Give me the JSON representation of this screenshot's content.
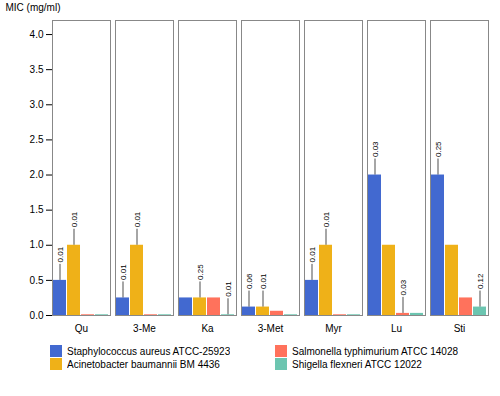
{
  "chart_data": {
    "type": "bar",
    "categories": [
      "Qu",
      "3-Me",
      "Ka",
      "3-Met",
      "Myr",
      "Lu",
      "Sti"
    ],
    "series": [
      {
        "name": "Staphylococcus aureus ATCC-25923",
        "values": [
          0.5,
          0.25,
          0.25,
          0.12,
          0.5,
          2.0,
          2.0
        ],
        "annotations": [
          "0.01",
          "0.01",
          null,
          "0.06",
          "0.01",
          "0.03",
          "0.25"
        ]
      },
      {
        "name": "Acinetobacter baumannii BM 4436",
        "values": [
          1.0,
          1.0,
          0.25,
          0.12,
          1.0,
          1.0,
          1.0
        ],
        "annotations": [
          "0.01",
          "0.01",
          "0.25",
          "0.01",
          "0.01",
          null,
          null
        ]
      },
      {
        "name": "Salmonella typhimurium ATCC 14028",
        "values": [
          0.01,
          0.01,
          0.25,
          0.06,
          0.01,
          0.03,
          0.25
        ],
        "annotations": [
          null,
          null,
          null,
          null,
          null,
          "0.03",
          null
        ]
      },
      {
        "name": "Shigella flexneri ATCC 12022",
        "values": [
          0.01,
          0.01,
          0.01,
          0.01,
          0.01,
          0.03,
          0.12
        ],
        "annotations": [
          null,
          null,
          "0.01",
          null,
          null,
          null,
          "0.12"
        ]
      }
    ],
    "ylabel": "MIC (mg/ml)",
    "ylim": [
      0,
      4.2
    ],
    "yticks": [
      {
        "value": 0,
        "label": "0.0"
      },
      {
        "value": 0.5,
        "label": "0.5"
      },
      {
        "value": 1.0,
        "label": "1.0"
      },
      {
        "value": 1.5,
        "label": "1.5"
      },
      {
        "value": 2.0,
        "label": "2.0"
      },
      {
        "value": 2.5,
        "label": "2.5"
      },
      {
        "value": 3.0,
        "label": "3.0"
      },
      {
        "value": 3.5,
        "label": "3.5"
      },
      {
        "value": 4.0,
        "label": "4.0"
      }
    ],
    "legend": "bottom",
    "grid": false
  }
}
